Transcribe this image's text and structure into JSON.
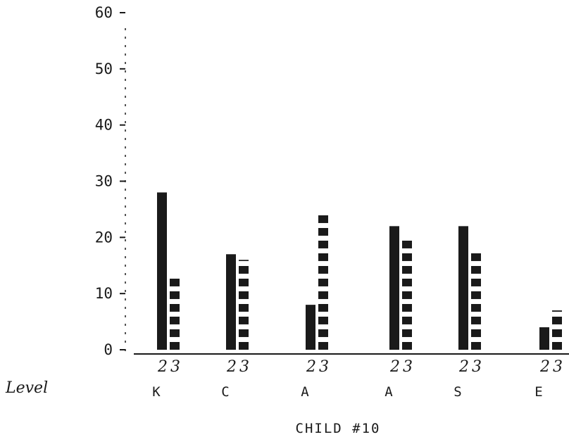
{
  "chart_data": {
    "type": "bar",
    "title": "",
    "xlabel": "CHILD #10",
    "ylabel": "",
    "row_label": "Level",
    "ylim": [
      0,
      60
    ],
    "yticks": [
      "0",
      "10",
      "20",
      "30",
      "40",
      "50",
      "60"
    ],
    "categories": [
      "K",
      "C",
      "A",
      "A",
      "S",
      "E"
    ],
    "series": [
      {
        "level": "2",
        "fill": "solid",
        "values": [
          28,
          17,
          8,
          22,
          22,
          4
        ]
      },
      {
        "level": "3",
        "fill": "hatched",
        "values": [
          13,
          16,
          24,
          20,
          18,
          7
        ]
      }
    ],
    "grid": false,
    "legend": "none",
    "colors": {
      "ink": "#1a1a1a",
      "background": "#ffffff"
    }
  }
}
